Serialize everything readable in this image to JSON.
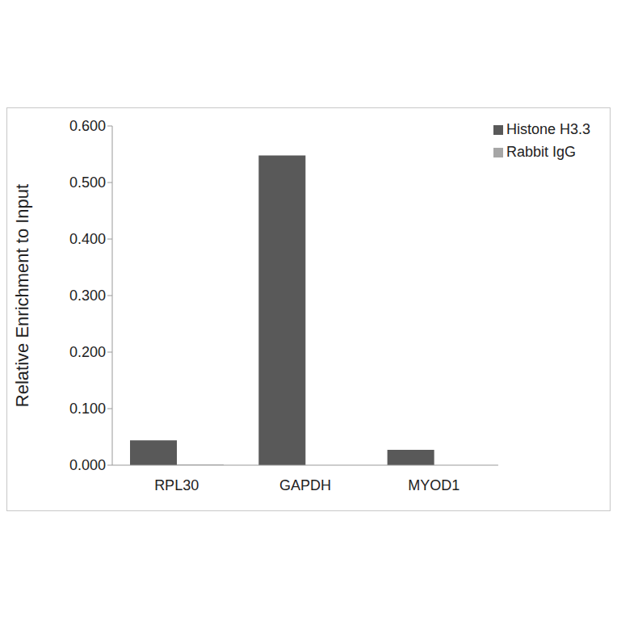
{
  "chart_data": {
    "type": "bar",
    "y_label": "Relative Enrichment to Input",
    "categories": [
      "RPL30",
      "GAPDH",
      "MYOD1"
    ],
    "series": [
      {
        "name": "Histone H3.3",
        "color": "#595959",
        "values": [
          0.044,
          0.548,
          0.027
        ]
      },
      {
        "name": "Rabbit IgG",
        "color": "#a6a6a6",
        "values": [
          0.001,
          0.0,
          0.0
        ]
      }
    ],
    "ylim": [
      0,
      0.6
    ],
    "yticks": [
      {
        "value": 0,
        "label": "0.000"
      },
      {
        "value": 0.1,
        "label": "0.100"
      },
      {
        "value": 0.2,
        "label": "0.200"
      },
      {
        "value": 0.3,
        "label": "0.300"
      },
      {
        "value": 0.4,
        "label": "0.400"
      },
      {
        "value": 0.5,
        "label": "0.500"
      },
      {
        "value": 0.6,
        "label": "0.600"
      }
    ],
    "grid": false,
    "legend": "top-right"
  }
}
